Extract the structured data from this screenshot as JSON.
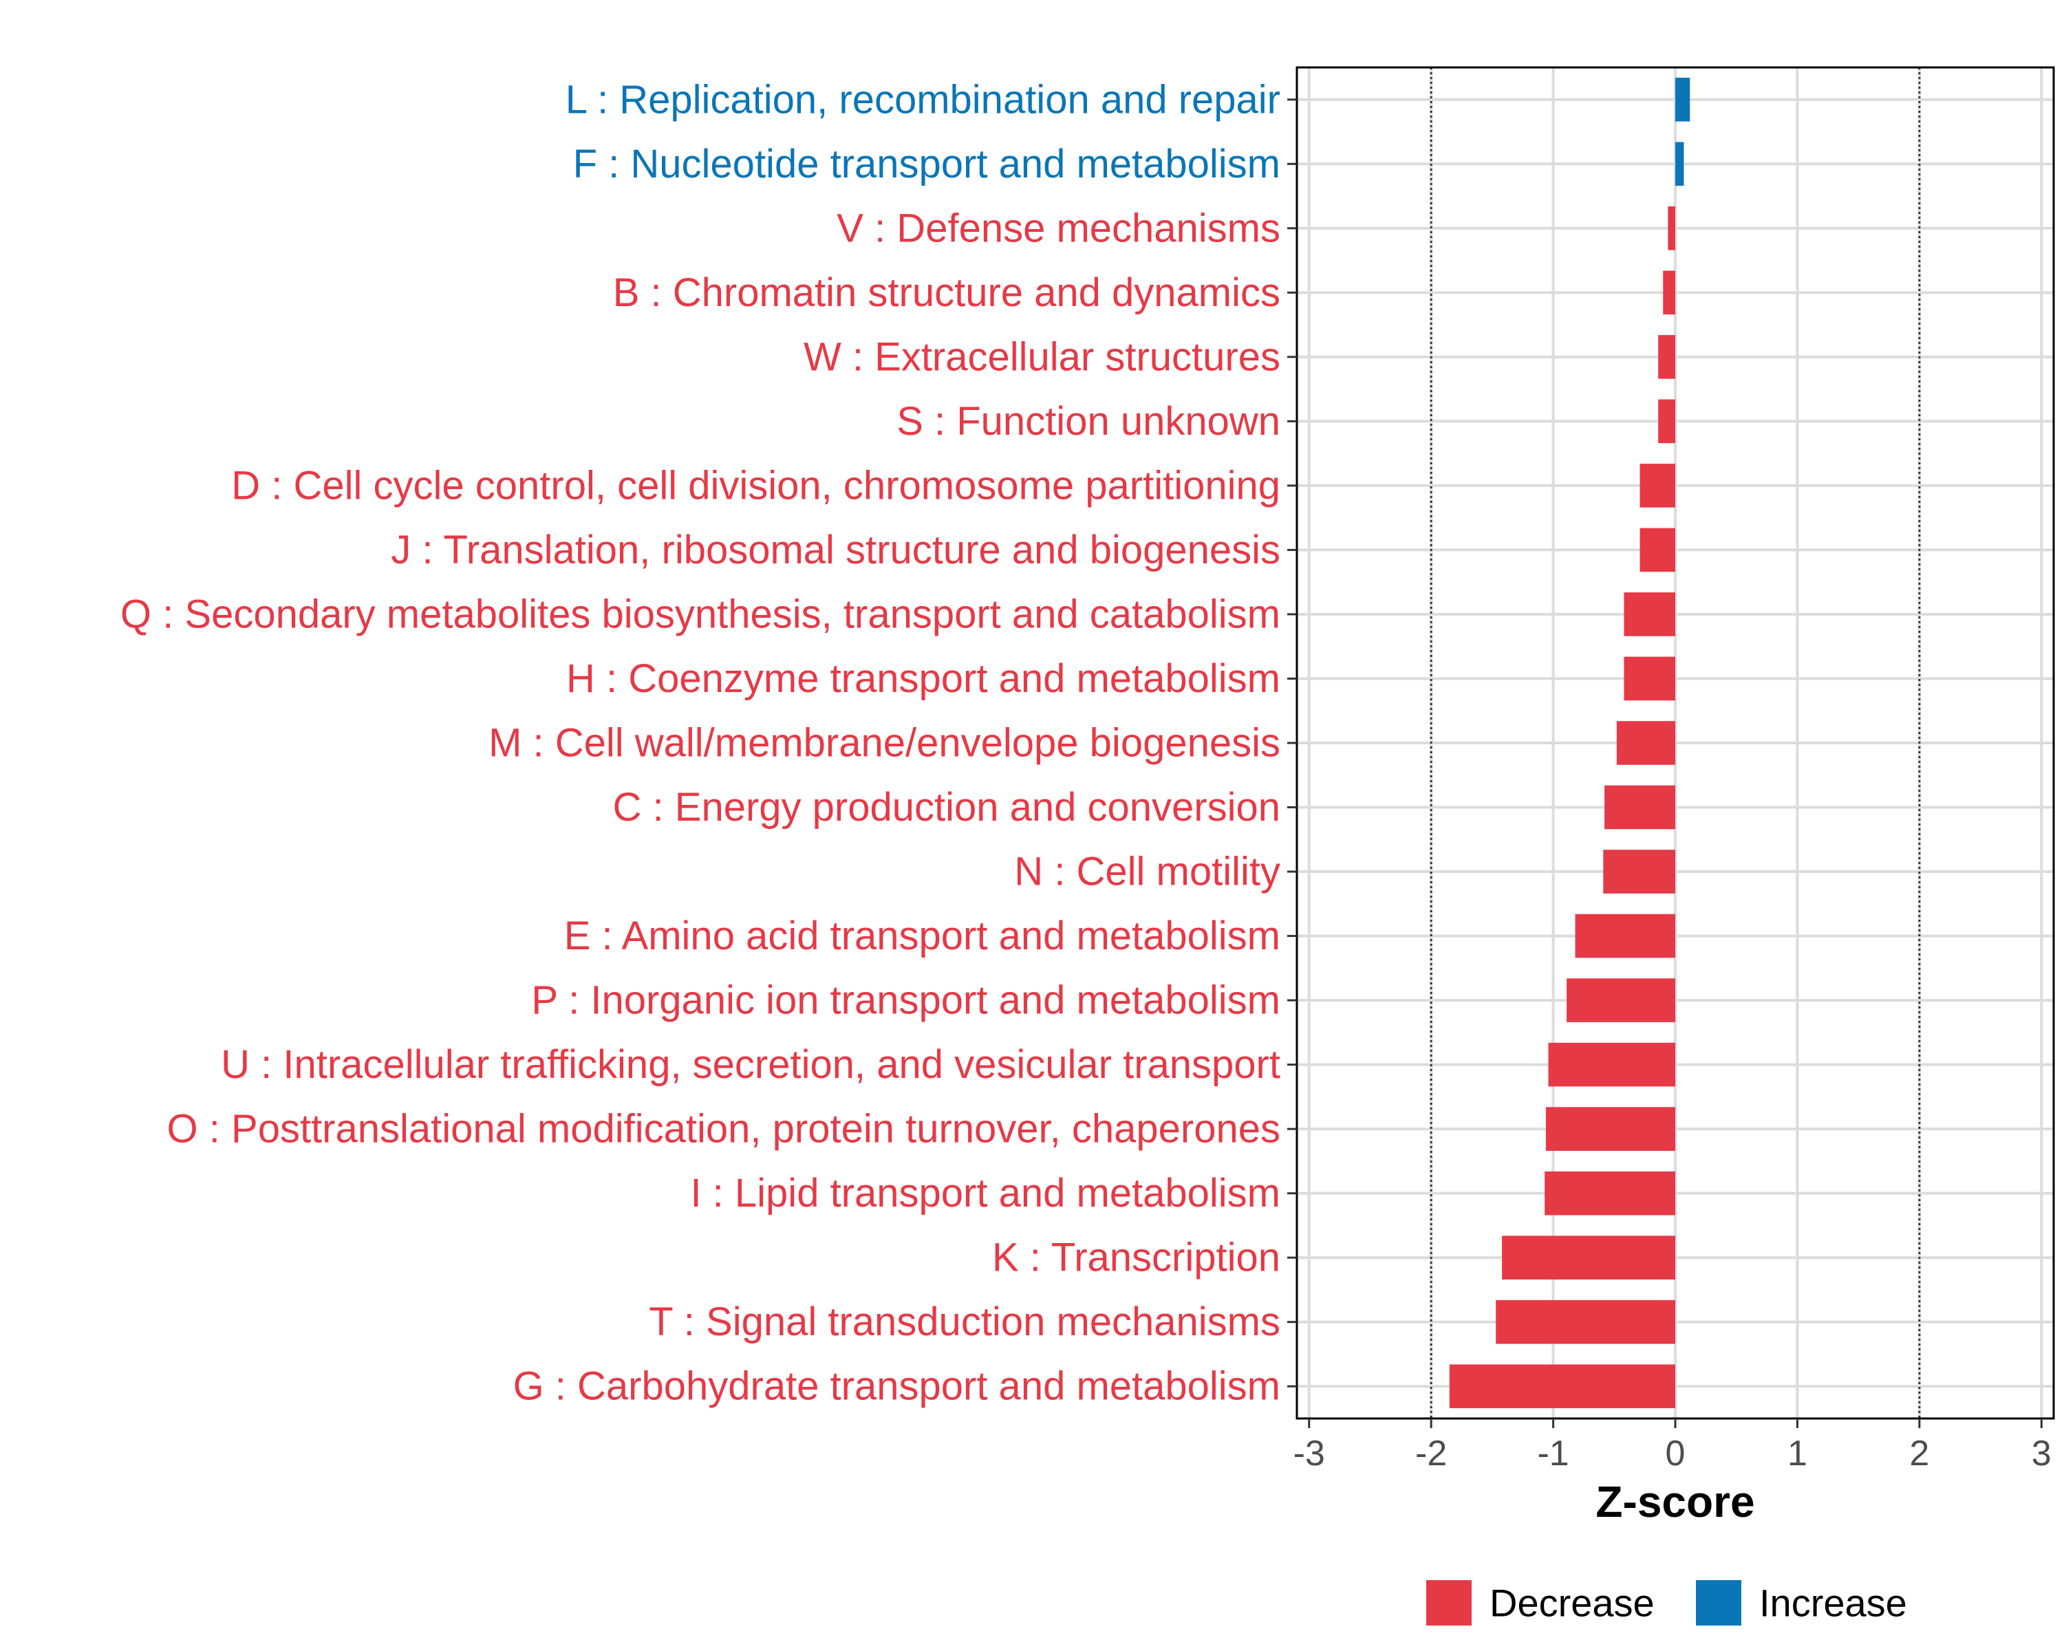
{
  "chart_data": {
    "type": "bar",
    "orientation": "horizontal",
    "xlabel": "Z-score",
    "xlim": [
      -3.1,
      3.1
    ],
    "xticks": [
      -3,
      -2,
      -1,
      0,
      1,
      2,
      3
    ],
    "xtick_labels": [
      "-3",
      "-2",
      "-1",
      "0",
      "1",
      "2",
      "3"
    ],
    "reference_lines": [
      -2,
      2
    ],
    "grid": true,
    "colors": {
      "Decrease": "#e63946",
      "Increase": "#0a76b7"
    },
    "categories": [
      "L : Replication, recombination and repair",
      "F : Nucleotide transport and metabolism",
      "V : Defense mechanisms",
      "B : Chromatin structure and dynamics",
      "W : Extracellular structures",
      "S : Function unknown",
      "D : Cell cycle control, cell division, chromosome partitioning",
      "J : Translation, ribosomal structure and biogenesis",
      "Q : Secondary metabolites biosynthesis, transport and catabolism",
      "H : Coenzyme transport and metabolism",
      "M : Cell wall/membrane/envelope biogenesis",
      "C : Energy production and conversion",
      "N : Cell motility",
      "E : Amino acid transport and metabolism",
      "P : Inorganic ion transport and metabolism",
      "U : Intracellular trafficking, secretion, and vesicular transport",
      "O : Posttranslational modification, protein turnover, chaperones",
      "I : Lipid transport and metabolism",
      "K : Transcription",
      "T : Signal transduction mechanisms",
      "G : Carbohydrate transport and metabolism"
    ],
    "values": [
      0.12,
      0.07,
      -0.06,
      -0.1,
      -0.14,
      -0.14,
      -0.29,
      -0.29,
      -0.42,
      -0.42,
      -0.48,
      -0.58,
      -0.59,
      -0.82,
      -0.89,
      -1.04,
      -1.06,
      -1.07,
      -1.42,
      -1.47,
      -1.85
    ],
    "direction": [
      "Increase",
      "Increase",
      "Decrease",
      "Decrease",
      "Decrease",
      "Decrease",
      "Decrease",
      "Decrease",
      "Decrease",
      "Decrease",
      "Decrease",
      "Decrease",
      "Decrease",
      "Decrease",
      "Decrease",
      "Decrease",
      "Decrease",
      "Decrease",
      "Decrease",
      "Decrease",
      "Decrease"
    ],
    "legend": {
      "position": "bottom",
      "entries": [
        "Decrease",
        "Increase"
      ]
    }
  }
}
